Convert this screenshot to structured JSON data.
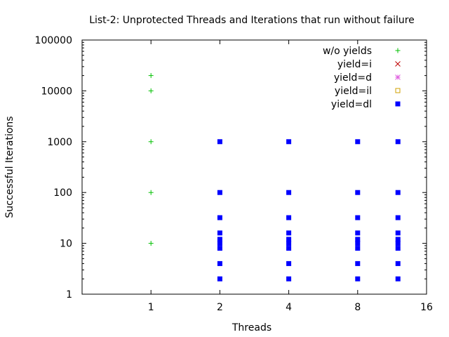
{
  "chart_data": {
    "type": "scatter",
    "title": "List-2: Unprotected Threads and Iterations that run without failure",
    "xlabel": "Threads",
    "ylabel": "Successful Iterations",
    "x_scale": "log2",
    "y_scale": "log10",
    "xlim": [
      0.5,
      16
    ],
    "ylim": [
      1,
      100000
    ],
    "x_ticks": [
      1,
      2,
      4,
      8,
      16
    ],
    "x_tick_labels": [
      "1",
      "2",
      "4",
      "8",
      "16"
    ],
    "y_ticks": [
      1,
      10,
      100,
      1000,
      10000,
      100000
    ],
    "y_tick_labels": [
      "1",
      "10",
      "100",
      "1000",
      "10000",
      "100000"
    ],
    "grid": false,
    "legend_position": "top-right",
    "series": [
      {
        "name": "w/o yields",
        "marker": "plus",
        "color": "#00c000",
        "points": [
          [
            1,
            10
          ],
          [
            1,
            100
          ],
          [
            1,
            1000
          ],
          [
            1,
            10000
          ],
          [
            1,
            20000
          ]
        ]
      },
      {
        "name": "yield=i",
        "marker": "cross",
        "color": "#c00000",
        "points": []
      },
      {
        "name": "yield=d",
        "marker": "star",
        "color": "#e060e0",
        "points": []
      },
      {
        "name": "yield=il",
        "marker": "open-square",
        "color": "#d0a000",
        "points": []
      },
      {
        "name": "yield=dl",
        "marker": "filled-square",
        "color": "#0000ff",
        "points": [
          [
            2,
            2
          ],
          [
            2,
            4
          ],
          [
            2,
            8
          ],
          [
            2,
            10
          ],
          [
            2,
            12
          ],
          [
            2,
            16
          ],
          [
            2,
            32
          ],
          [
            2,
            100
          ],
          [
            2,
            1000
          ],
          [
            4,
            2
          ],
          [
            4,
            4
          ],
          [
            4,
            8
          ],
          [
            4,
            10
          ],
          [
            4,
            12
          ],
          [
            4,
            16
          ],
          [
            4,
            32
          ],
          [
            4,
            100
          ],
          [
            4,
            1000
          ],
          [
            8,
            2
          ],
          [
            8,
            4
          ],
          [
            8,
            8
          ],
          [
            8,
            10
          ],
          [
            8,
            12
          ],
          [
            8,
            16
          ],
          [
            8,
            32
          ],
          [
            8,
            100
          ],
          [
            8,
            1000
          ],
          [
            12,
            2
          ],
          [
            12,
            4
          ],
          [
            12,
            8
          ],
          [
            12,
            10
          ],
          [
            12,
            12
          ],
          [
            12,
            16
          ],
          [
            12,
            32
          ],
          [
            12,
            100
          ],
          [
            12,
            1000
          ]
        ]
      }
    ]
  }
}
